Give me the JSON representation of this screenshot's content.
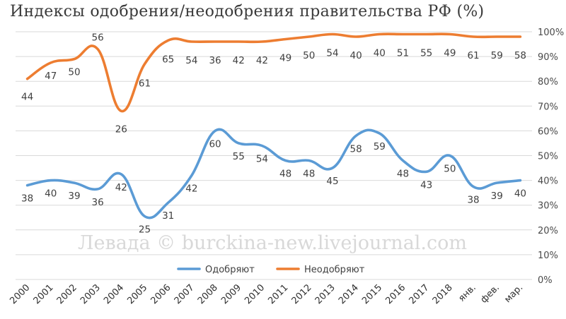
{
  "chart_data": {
    "type": "line",
    "title": "Индексы одобрения/неодобрения правительства РФ (%)",
    "categories": [
      "2000",
      "2001",
      "2002",
      "2003",
      "2004",
      "2005",
      "2006",
      "2007",
      "2008",
      "2009",
      "2010",
      "2011",
      "2012",
      "2013",
      "2014",
      "2015",
      "2016",
      "2017",
      "2018",
      "янв.",
      "фев.",
      "мар."
    ],
    "series": [
      {
        "name": "Одобряют",
        "color": "#5b9bd5",
        "values": [
          38,
          40,
          39,
          36,
          42,
          25,
          31,
          42,
          60,
          55,
          54,
          48,
          48,
          45,
          58,
          59,
          48,
          43,
          50,
          38,
          39,
          40
        ],
        "plotted": [
          38,
          40,
          39,
          36.5,
          42.5,
          25.5,
          31,
          42,
          60,
          55,
          54,
          48,
          48,
          45,
          58,
          59,
          48,
          43.5,
          50,
          37.5,
          39,
          40
        ]
      },
      {
        "name": "Неодобряют",
        "color": "#ed7d31",
        "values": [
          44,
          47,
          50,
          56,
          26,
          61,
          65,
          54,
          36,
          42,
          42,
          49,
          50,
          54,
          40,
          40,
          51,
          55,
          49,
          61,
          59,
          58
        ],
        "plotted": [
          81,
          87.5,
          89,
          93,
          68,
          87,
          96.5,
          96,
          96,
          96,
          96,
          97,
          98,
          99,
          98,
          99,
          99,
          99,
          99,
          98,
          98,
          98
        ]
      }
    ],
    "ylim": [
      0,
      100
    ],
    "yticks": [
      "0%",
      "10%",
      "20%",
      "30%",
      "40%",
      "50%",
      "60%",
      "70%",
      "80%",
      "90%",
      "100%"
    ],
    "y_axis_position": "right",
    "grid": true,
    "legend": "bottom"
  },
  "watermark": "Левада © burckina-new.livejournal.com"
}
